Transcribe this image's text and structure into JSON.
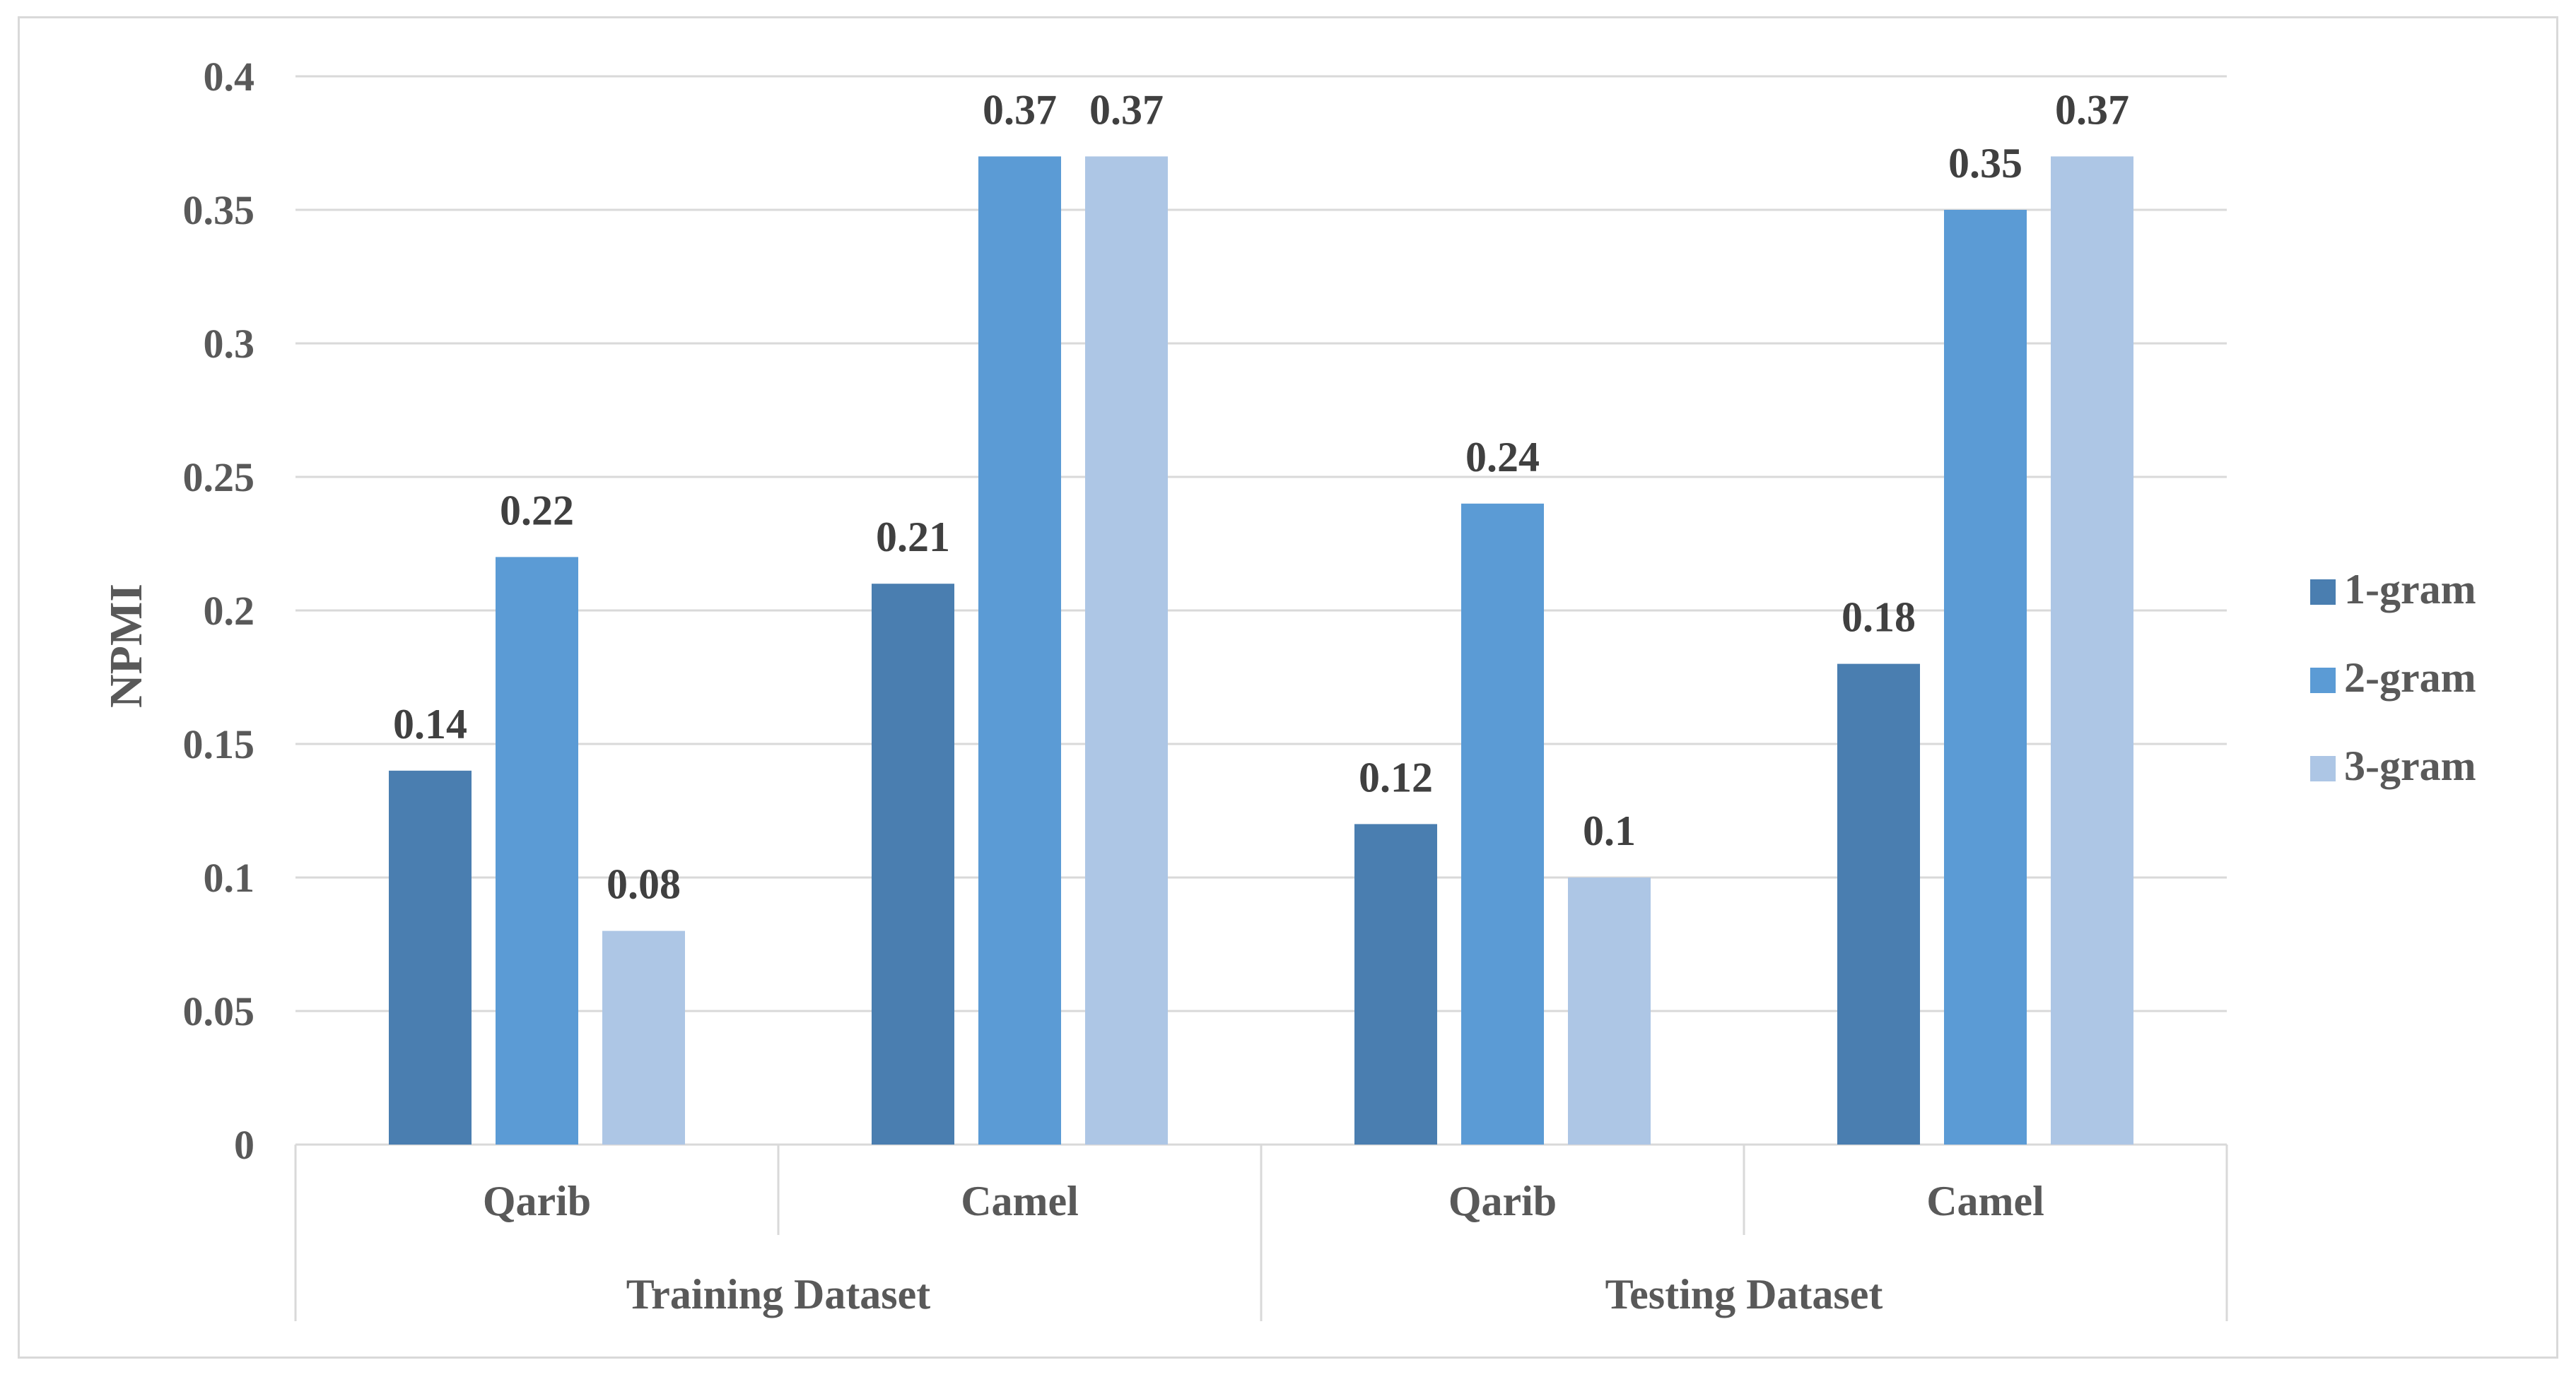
{
  "chart_data": {
    "type": "bar",
    "title": "",
    "xlabel": "",
    "ylabel": "NPMI",
    "ylim": [
      0,
      0.4
    ],
    "yticks": [
      "0",
      "0.05",
      "0.1",
      "0.15",
      "0.2",
      "0.25",
      "0.3",
      "0.35",
      "0.4"
    ],
    "groups": [
      {
        "label": "Training Dataset",
        "categories": [
          "Qarib",
          "Camel"
        ]
      },
      {
        "label": "Testing Dataset",
        "categories": [
          "Qarib",
          "Camel"
        ]
      }
    ],
    "categories": [
      "Qarib",
      "Camel",
      "Qarib",
      "Camel"
    ],
    "series": [
      {
        "name": "1-gram",
        "color": "#4a7eb0",
        "values": [
          0.14,
          0.21,
          0.12,
          0.18
        ]
      },
      {
        "name": "2-gram",
        "color": "#5b9bd5",
        "values": [
          0.22,
          0.37,
          0.24,
          0.35
        ]
      },
      {
        "name": "3-gram",
        "color": "#adc6e5",
        "values": [
          0.08,
          0.37,
          0.1,
          0.37
        ]
      }
    ],
    "legend_position": "right",
    "grid": true,
    "gridline_color": "#d9d9d9"
  }
}
